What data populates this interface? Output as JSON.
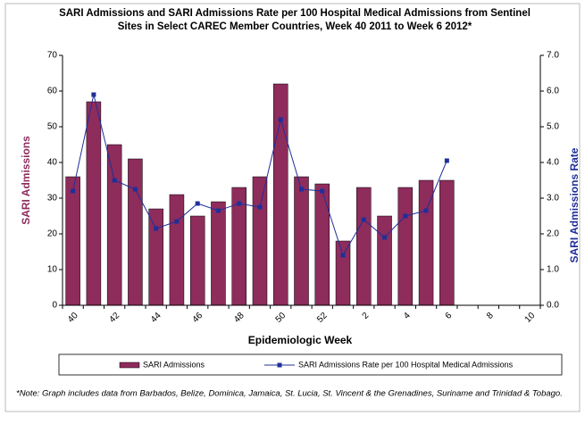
{
  "chart_data": {
    "type": "bar_line",
    "title": "SARI Admissions and SARI Admissions Rate per 100 Hospital Medical Admissions from Sentinel Sites in Select CAREC Member Countries, Week 40 2011 to Week 6 2012*",
    "xlabel": "Epidemiologic Week",
    "ylabel": "SARI Admissions",
    "y2label": "SARI Admissions Rate",
    "note": "*Note: Graph includes data from Barbados, Belize, Dominica, Jamaica,  St. Lucia, St. Vincent & the Grenadines, Suriname and Trinidad & Tobago.",
    "categories": [
      "40",
      null,
      "42",
      null,
      "44",
      null,
      "46",
      null,
      "48",
      null,
      "50",
      null,
      "52",
      null,
      "2",
      null,
      "4",
      null,
      "6",
      null,
      "8",
      null,
      "10"
    ],
    "series": [
      {
        "name": "SARI Admissions",
        "type": "bar",
        "color": "#8e2c5c",
        "values": [
          36,
          57,
          45,
          41,
          27,
          31,
          25,
          29,
          33,
          36,
          62,
          36,
          34,
          18,
          33,
          25,
          33,
          35,
          35,
          null,
          null,
          null,
          null
        ]
      },
      {
        "name": "SARI Admissions Rate per 100 Hospital Medical Admissions",
        "type": "line",
        "axis": "y2",
        "color": "#1f2f9a",
        "values": [
          3.2,
          5.9,
          3.5,
          3.25,
          2.15,
          2.35,
          2.85,
          2.65,
          2.85,
          2.75,
          5.2,
          3.25,
          3.2,
          1.4,
          2.4,
          1.9,
          2.5,
          2.65,
          4.05,
          null,
          null,
          null,
          null
        ]
      }
    ],
    "ylim": [
      0,
      70
    ],
    "yticks": [
      0,
      10,
      20,
      30,
      40,
      50,
      60,
      70
    ],
    "y2lim": [
      0,
      7
    ],
    "y2ticks": [
      {
        "value": 0,
        "label": "0.0"
      },
      {
        "value": 1,
        "label": "1.0"
      },
      {
        "value": 2,
        "label": "2.0"
      },
      {
        "value": 3,
        "label": "3.0"
      },
      {
        "value": 4,
        "label": "4.0"
      },
      {
        "value": 5,
        "label": "5.0"
      },
      {
        "value": 6,
        "label": "6.0"
      },
      {
        "value": 7,
        "label": "7.0"
      }
    ],
    "legend": "bottom"
  }
}
